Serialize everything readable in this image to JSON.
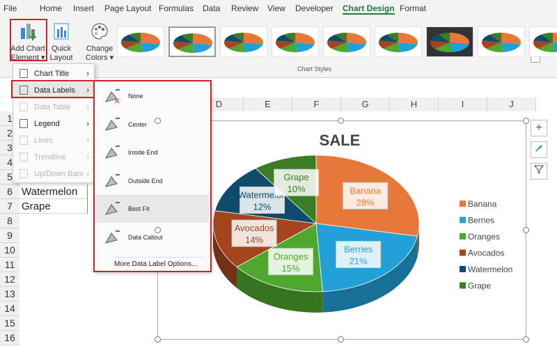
{
  "menu_tabs": [
    "File",
    "Home",
    "Insert",
    "Page Layout",
    "Formulas",
    "Data",
    "Review",
    "View",
    "Developer",
    "Chart Design",
    "Format"
  ],
  "active_tab": "Chart Design",
  "ribbon": {
    "add_chart_element": [
      "Add Chart",
      "Element ▾"
    ],
    "quick_layout": [
      "Quick",
      "Layout ▾"
    ],
    "change_colors": [
      "Change",
      "Colors ▾"
    ],
    "group_label": "Chart Styles"
  },
  "columns": [
    "D",
    "E",
    "F",
    "G",
    "H",
    "I",
    "J"
  ],
  "rows": [
    "1",
    "2",
    "3",
    "4",
    "5",
    "6",
    "7",
    "8",
    "9",
    "10",
    "11",
    "12",
    "13",
    "14",
    "15",
    "16"
  ],
  "cells": {
    "A6": "Watermelon",
    "A7": "Grape"
  },
  "add_element_menu": [
    {
      "label": "Chart Title",
      "enabled": true
    },
    {
      "label": "Data Labels",
      "enabled": true,
      "highlighted": true
    },
    {
      "label": "Data Table",
      "enabled": false
    },
    {
      "label": "Legend",
      "enabled": true
    },
    {
      "label": "Lines",
      "enabled": false
    },
    {
      "label": "Trendline",
      "enabled": false
    },
    {
      "label": "Up/Down Bars",
      "enabled": false
    }
  ],
  "data_labels_menu": [
    "None",
    "Center",
    "Inside End",
    "Outside End",
    "Best Fit",
    "Data Callout"
  ],
  "data_labels_selected": "Best Fit",
  "data_labels_more": "More Data Label Options...",
  "chart_data": {
    "type": "pie",
    "title": "SALE",
    "categories": [
      "Banana",
      "Berries",
      "Oranges",
      "Avocados",
      "Watermelon",
      "Grape"
    ],
    "values": [
      28,
      21,
      15,
      14,
      12,
      10
    ],
    "labels": [
      "28%",
      "21%",
      "15%",
      "14%",
      "12%",
      "10%"
    ],
    "colors": [
      "#E8773A",
      "#22A0D8",
      "#4EA72E",
      "#A4461D",
      "#0F4B6B",
      "#3C7D24"
    ],
    "legend_position": "right",
    "three_d": true
  },
  "side_buttons": {
    "add": "+",
    "style": "brush-icon",
    "filter": "filter-icon"
  }
}
